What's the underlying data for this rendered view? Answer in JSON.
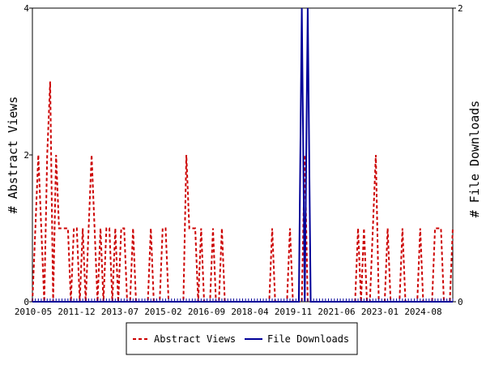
{
  "chart_data": {
    "type": "line",
    "x_axis": {
      "tick_labels": [
        "2010-05",
        "2011-12",
        "2013-07",
        "2015-02",
        "2016-09",
        "2018-04",
        "2019-11",
        "2021-06",
        "2023-01",
        "2024-08"
      ]
    },
    "y_left": {
      "label": "# Abstract Views",
      "ylim": [
        0,
        4
      ],
      "ticks": [
        "0",
        "2",
        "4"
      ]
    },
    "y_right": {
      "label": "# File Downloads",
      "ylim": [
        0,
        2
      ],
      "ticks": [
        "0",
        "2"
      ]
    },
    "grid": false,
    "legend_position": "bottom",
    "series": [
      {
        "name": "Abstract Views",
        "axis": "left",
        "color": "#cc0000",
        "style": "dashed",
        "values": [
          0,
          1,
          2,
          1,
          0,
          2,
          3,
          0,
          2,
          1,
          1,
          1,
          1,
          0,
          1,
          1,
          0,
          1,
          0,
          1,
          2,
          1,
          0,
          1,
          0,
          1,
          1,
          0,
          1,
          0,
          1,
          1,
          0,
          0,
          1,
          0,
          0,
          0,
          0,
          0,
          1,
          0,
          0,
          0,
          1,
          1,
          0,
          0,
          0,
          0,
          0,
          0,
          2,
          1,
          1,
          1,
          0,
          1,
          0,
          0,
          0,
          1,
          0,
          0,
          1,
          0,
          0,
          0,
          0,
          0,
          0,
          0,
          0,
          0,
          0,
          0,
          0,
          0,
          0,
          0,
          0,
          1,
          0,
          0,
          0,
          0,
          0,
          1,
          0,
          0,
          0,
          0,
          2,
          0,
          0,
          0,
          0,
          0,
          0,
          0,
          0,
          0,
          0,
          0,
          0,
          0,
          0,
          0,
          0,
          0,
          1,
          0,
          1,
          0,
          0,
          1,
          2,
          0,
          0,
          0,
          1,
          0,
          0,
          0,
          0,
          1,
          0,
          0,
          0,
          0,
          0,
          1,
          0,
          0,
          0,
          0,
          1,
          1,
          1,
          0,
          0,
          0,
          1
        ]
      },
      {
        "name": "File Downloads",
        "axis": "right",
        "color": "#000099",
        "style": "solid",
        "values": [
          0,
          0,
          0,
          0,
          0,
          0,
          0,
          0,
          0,
          0,
          0,
          0,
          0,
          0,
          0,
          0,
          0,
          0,
          0,
          0,
          0,
          0,
          0,
          0,
          0,
          0,
          0,
          0,
          0,
          0,
          0,
          0,
          0,
          0,
          0,
          0,
          0,
          0,
          0,
          0,
          0,
          0,
          0,
          0,
          0,
          0,
          0,
          0,
          0,
          0,
          0,
          0,
          0,
          0,
          0,
          0,
          0,
          0,
          0,
          0,
          0,
          0,
          0,
          0,
          0,
          0,
          0,
          0,
          0,
          0,
          0,
          0,
          0,
          0,
          0,
          0,
          0,
          0,
          0,
          0,
          0,
          0,
          0,
          0,
          0,
          0,
          0,
          0,
          0,
          0,
          0,
          2,
          0,
          2,
          0,
          0,
          0,
          0,
          0,
          0,
          0,
          0,
          0,
          0,
          0,
          0,
          0,
          0,
          0,
          0,
          0,
          0,
          0,
          0,
          0,
          0,
          0,
          0,
          0,
          0,
          0,
          0,
          0,
          0,
          0,
          0,
          0,
          0,
          0,
          0,
          0,
          0,
          0,
          0,
          0,
          0,
          0,
          0,
          0,
          0,
          0,
          0,
          0
        ]
      }
    ]
  },
  "colors": {
    "abstract_views": "#cc0000",
    "file_downloads": "#000099",
    "axis": "#000000"
  }
}
